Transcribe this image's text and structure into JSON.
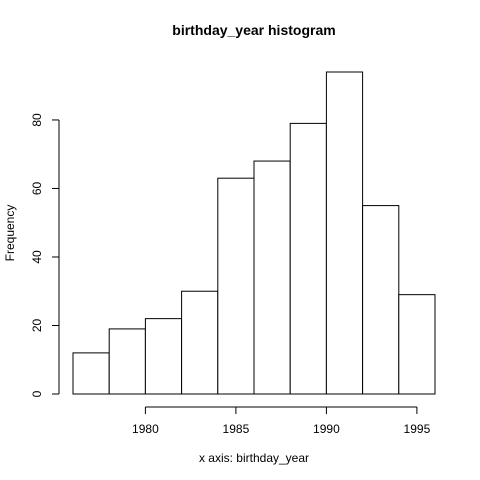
{
  "chart_data": {
    "type": "bar",
    "title": "birthday_year histogram",
    "xlabel": "x axis: birthday_year",
    "ylabel": "Frequency",
    "bins": [
      {
        "start": 1976,
        "end": 1978,
        "count": 12
      },
      {
        "start": 1978,
        "end": 1980,
        "count": 19
      },
      {
        "start": 1980,
        "end": 1982,
        "count": 22
      },
      {
        "start": 1982,
        "end": 1984,
        "count": 30
      },
      {
        "start": 1984,
        "end": 1986,
        "count": 63
      },
      {
        "start": 1986,
        "end": 1988,
        "count": 68
      },
      {
        "start": 1988,
        "end": 1990,
        "count": 79
      },
      {
        "start": 1990,
        "end": 1992,
        "count": 94
      },
      {
        "start": 1992,
        "end": 1994,
        "count": 55
      },
      {
        "start": 1994,
        "end": 1996,
        "count": 29
      }
    ],
    "xlim": [
      1976,
      1996
    ],
    "ylim": [
      0,
      94
    ],
    "x_ticks": [
      1980,
      1985,
      1990,
      1995
    ],
    "y_ticks": [
      0,
      20,
      40,
      60,
      80
    ],
    "grid": false,
    "colors": {
      "bar_fill": "#ffffff",
      "bar_stroke": "#000000"
    }
  }
}
